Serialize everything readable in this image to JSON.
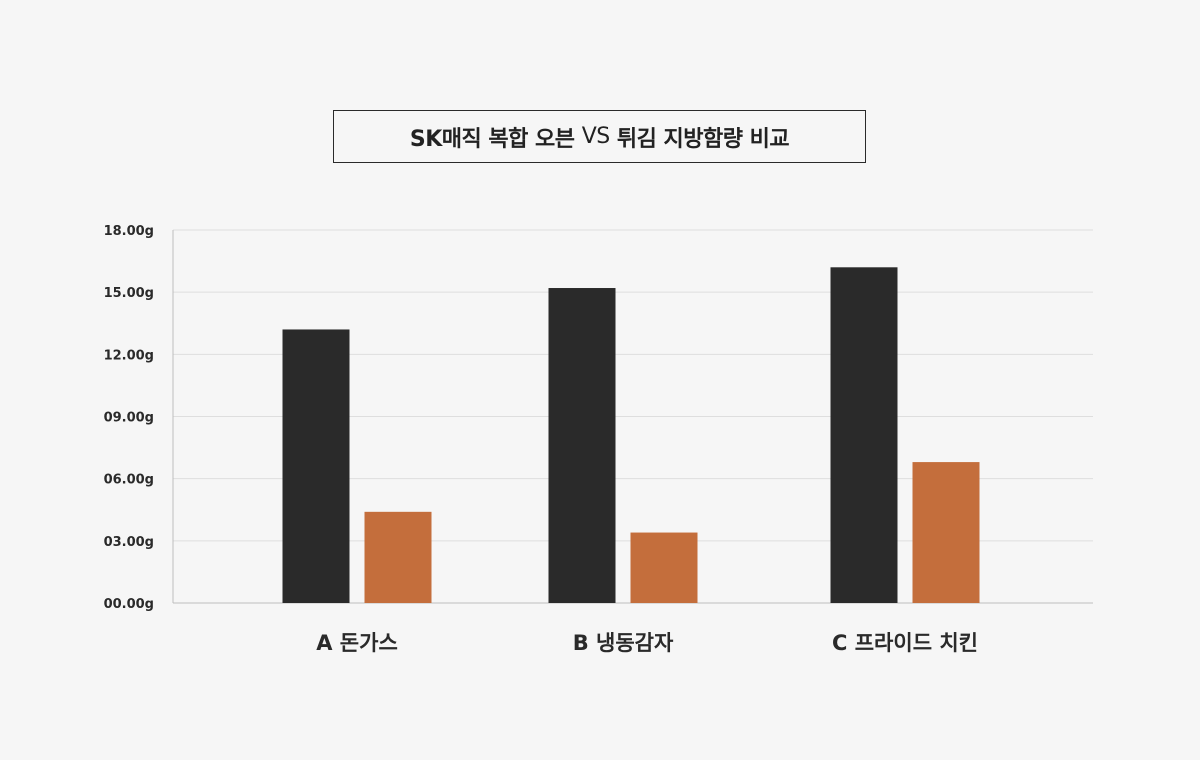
{
  "title": {
    "part1": "SK매직 복합 오븐",
    "part2": "VS",
    "part3": "튀김 지방함량 비교"
  },
  "colors": {
    "series_dark": "#2a2a2a",
    "series_orange": "#c46e3c",
    "grid": "#dedede",
    "axis": "#bdbdbd",
    "background": "#f6f6f6"
  },
  "chart_data": {
    "type": "bar",
    "categories": [
      "A 돈가스",
      "B 냉동감자",
      "C 프라이드 치킨"
    ],
    "series": [
      {
        "values": [
          13.2,
          15.2,
          16.2
        ]
      },
      {
        "values": [
          4.4,
          3.4,
          6.8
        ]
      }
    ],
    "yticks": [
      "00.00g",
      "03.00g",
      "06.00g",
      "09.00g",
      "12.00g",
      "15.00g",
      "18.00g"
    ],
    "ylim": [
      0,
      18
    ],
    "grid": true,
    "legend": "none"
  }
}
